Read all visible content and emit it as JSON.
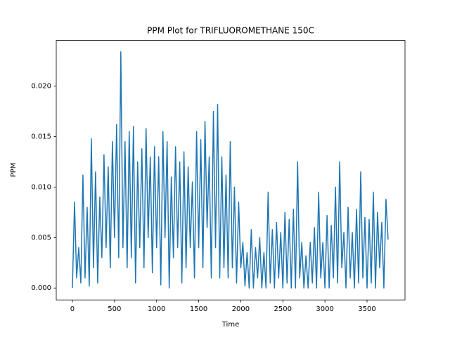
{
  "chart_data": {
    "type": "line",
    "title": "PPM Plot for TRIFLUOROMETHANE 150C",
    "x_label": "Time",
    "y_label": "PPM",
    "color": "#1f77b4",
    "xlim": [
      -192,
      3951
    ],
    "ylim": [
      -0.00118,
      0.02453
    ],
    "xticks": [
      0,
      500,
      1000,
      1500,
      2000,
      2500,
      3000,
      3500
    ],
    "yticks": [
      {
        "value": 0,
        "label": "0.000"
      },
      {
        "value": 0.005,
        "label": "0.005"
      },
      {
        "value": 0.01,
        "label": "0.010"
      },
      {
        "value": 0.015,
        "label": "0.015"
      },
      {
        "value": 0.02,
        "label": "0.020"
      }
    ],
    "x": [
      0,
      25,
      50,
      75,
      100,
      125,
      150,
      175,
      200,
      225,
      250,
      275,
      300,
      325,
      350,
      375,
      400,
      425,
      450,
      475,
      500,
      525,
      550,
      575,
      600,
      625,
      650,
      675,
      700,
      725,
      750,
      775,
      800,
      825,
      850,
      875,
      900,
      925,
      950,
      975,
      1000,
      1025,
      1050,
      1075,
      1100,
      1125,
      1150,
      1175,
      1200,
      1225,
      1250,
      1275,
      1300,
      1325,
      1350,
      1375,
      1400,
      1425,
      1450,
      1475,
      1500,
      1525,
      1550,
      1575,
      1600,
      1625,
      1650,
      1675,
      1700,
      1725,
      1750,
      1775,
      1800,
      1825,
      1850,
      1875,
      1900,
      1925,
      1950,
      1975,
      2000,
      2025,
      2050,
      2075,
      2100,
      2125,
      2150,
      2175,
      2200,
      2225,
      2250,
      2275,
      2300,
      2325,
      2350,
      2375,
      2400,
      2425,
      2450,
      2475,
      2500,
      2525,
      2550,
      2575,
      2600,
      2625,
      2650,
      2675,
      2700,
      2725,
      2750,
      2775,
      2800,
      2825,
      2850,
      2875,
      2900,
      2925,
      2950,
      2975,
      3000,
      3025,
      3050,
      3075,
      3100,
      3125,
      3150,
      3175,
      3200,
      3225,
      3250,
      3275,
      3300,
      3325,
      3350,
      3375,
      3400,
      3425,
      3450,
      3475,
      3500,
      3525,
      3550,
      3575,
      3600,
      3625,
      3650,
      3675,
      3700,
      3725,
      3750
    ],
    "values": [
      0,
      0.0085,
      0.001,
      0.004,
      0.0005,
      0.0112,
      0.001,
      0.008,
      0.0002,
      0.0148,
      0.002,
      0.0115,
      0.0005,
      0.009,
      0.003,
      0.0132,
      0.004,
      0.012,
      0.002,
      0.0145,
      0.005,
      0.0162,
      0.003,
      0.0234,
      0.004,
      0.0145,
      0.002,
      0.0155,
      0.003,
      0.016,
      0.0005,
      0.0125,
      0.004,
      0.0138,
      0.002,
      0.0158,
      0.005,
      0.013,
      0.0015,
      0.014,
      0.004,
      0.013,
      0.0003,
      0.0155,
      0.005,
      0.0145,
      0,
      0.011,
      0.003,
      0.014,
      0.004,
      0.0125,
      0.0005,
      0.0135,
      0.002,
      0.012,
      0.004,
      0.0105,
      0.001,
      0.0155,
      0.004,
      0.0147,
      0.002,
      0.0165,
      0.006,
      0.013,
      0.001,
      0.0175,
      0.004,
      0.0182,
      0.001,
      0.013,
      0.002,
      0.0112,
      0.001,
      0.0145,
      0.002,
      0.01,
      0.0005,
      0.0085,
      0.002,
      0.0045,
      0.0002,
      0.0035,
      0,
      0.0058,
      0,
      0.004,
      0.001,
      0.005,
      0,
      0.0035,
      0,
      0.0095,
      0.0005,
      0.0058,
      0,
      0.0065,
      0.001,
      0.0055,
      0,
      0.0075,
      0.0005,
      0.0068,
      0,
      0.0078,
      0,
      0.0125,
      0.001,
      0.0045,
      0,
      0.0032,
      0,
      0.0045,
      0.0005,
      0.006,
      0,
      0.0095,
      0.001,
      0.0045,
      0,
      0.0072,
      0,
      0.0062,
      0.001,
      0.01,
      0.0005,
      0.0125,
      0.002,
      0.0055,
      0,
      0.008,
      0.001,
      0.0055,
      0,
      0.0078,
      0.0005,
      0.0115,
      0.001,
      0.007,
      0,
      0.0068,
      0.0005,
      0.0095,
      0,
      0.0075,
      0.002,
      0.0065,
      0,
      0.0088,
      0.0048
    ]
  }
}
